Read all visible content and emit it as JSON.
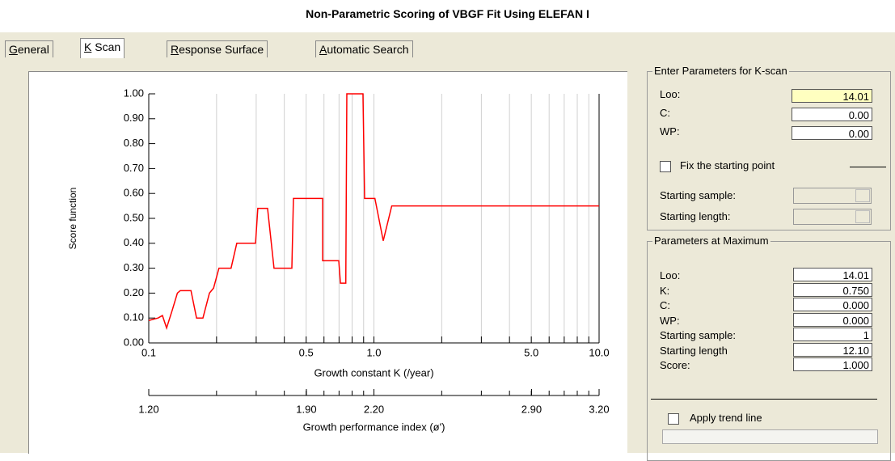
{
  "window_title": "Non-Parametric Scoring of VBGF Fit Using ELEFAN I",
  "tabs": [
    "General",
    "K Scan",
    "Response Surface",
    "Automatic Search"
  ],
  "chart_data": {
    "type": "line",
    "ylabel": "Score function",
    "xlabel": "Growth constant K (/year)",
    "x2label": "Growth performance index (ø')",
    "xscale": "log",
    "xlim": [
      0.1,
      10
    ],
    "xticks": [
      0.1,
      0.5,
      {
        "value": 1,
        "label": "1.0"
      },
      {
        "value": 5,
        "label": "5.0"
      },
      {
        "value": 10,
        "label": "10.0"
      }
    ],
    "xminor": [
      0.2,
      0.3,
      0.4,
      0.6,
      0.7,
      0.8,
      0.9,
      2,
      3,
      4,
      6,
      7,
      8,
      9
    ],
    "x2lim": [
      1.2,
      3.2
    ],
    "x2ticks": [
      {
        "value": 1.2,
        "label": "1.20"
      },
      {
        "value": 1.9,
        "label": "1.90"
      },
      {
        "value": 2.2,
        "label": "2.20"
      },
      {
        "value": 2.9,
        "label": "2.90"
      },
      {
        "value": 3.2,
        "label": "3.20"
      }
    ],
    "ylim": [
      0,
      1
    ],
    "yticks": [
      {
        "value": 0,
        "label": "0.00"
      },
      {
        "value": 0.1,
        "label": "0.10"
      },
      {
        "value": 0.2,
        "label": "0.20"
      },
      {
        "value": 0.3,
        "label": "0.30"
      },
      {
        "value": 0.4,
        "label": "0.40"
      },
      {
        "value": 0.5,
        "label": "0.50"
      },
      {
        "value": 0.6,
        "label": "0.60"
      },
      {
        "value": 0.7,
        "label": "0.70"
      },
      {
        "value": 0.8,
        "label": "0.80"
      },
      {
        "value": 0.9,
        "label": "0.90"
      },
      {
        "value": 1,
        "label": "1.00"
      }
    ],
    "grid": "x",
    "series": [
      {
        "color": "#ff0000",
        "x": [
          0.1,
          0.11,
          0.115,
          0.12,
          0.127,
          0.134,
          0.138,
          0.154,
          0.163,
          0.174,
          0.186,
          0.194,
          0.205,
          0.232,
          0.246,
          0.298,
          0.305,
          0.337,
          0.36,
          0.432,
          0.439,
          0.592,
          0.592,
          0.698,
          0.71,
          0.75,
          0.758,
          0.894,
          0.909,
          1.01,
          1.1,
          1.2,
          10
        ],
        "values": [
          0.09,
          0.1,
          0.11,
          0.06,
          0.13,
          0.2,
          0.21,
          0.21,
          0.1,
          0.1,
          0.2,
          0.22,
          0.3,
          0.3,
          0.4,
          0.4,
          0.54,
          0.54,
          0.3,
          0.3,
          0.58,
          0.58,
          0.33,
          0.33,
          0.24,
          0.24,
          1,
          1,
          0.58,
          0.58,
          0.41,
          0.55,
          0.55
        ]
      }
    ]
  },
  "scan_params": {
    "title": "Enter Parameters for K-scan",
    "fields": [
      {
        "label": "Loo:",
        "value": "14.01"
      },
      {
        "label": "C:",
        "value": "0.00"
      },
      {
        "label": "WP:",
        "value": "0.00"
      }
    ],
    "checkbox": "Fix the starting point",
    "selects": [
      "Starting sample:",
      "Starting length:"
    ]
  },
  "max_params": {
    "title": "Parameters at Maximum",
    "fields": [
      {
        "label": "Loo:",
        "value": "14.01"
      },
      {
        "label": "K:",
        "value": "0.750"
      },
      {
        "label": "C:",
        "value": "0.000"
      },
      {
        "label": "WP:",
        "value": "0.000"
      },
      {
        "label": "Starting sample:",
        "value": "1"
      },
      {
        "label": "Starting length",
        "value": "12.10"
      },
      {
        "label": "Score:",
        "value": "1.000"
      }
    ],
    "checkbox": "Apply trend line"
  }
}
